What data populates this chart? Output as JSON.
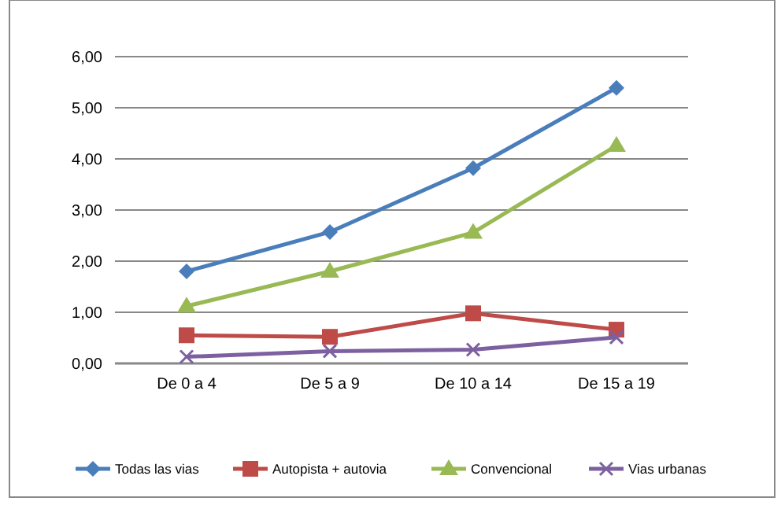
{
  "chart_data": {
    "type": "line",
    "categories": [
      "De 0 a 4",
      "De 5 a 9",
      "De 10 a 14",
      "De 15 a 19"
    ],
    "series": [
      {
        "name": "Todas las vias",
        "color": "#4a7ebb",
        "values": [
          1.8,
          2.57,
          3.82,
          5.39
        ],
        "marker": "diamond"
      },
      {
        "name": "Autopista + autovia",
        "color": "#be4b48",
        "values": [
          0.55,
          0.52,
          0.98,
          0.66
        ],
        "marker": "square"
      },
      {
        "name": "Convencional",
        "color": "#98b954",
        "values": [
          1.12,
          1.8,
          2.56,
          4.26
        ],
        "marker": "triangle"
      },
      {
        "name": "Vias urbanas",
        "color": "#7d60a0",
        "values": [
          0.13,
          0.24,
          0.27,
          0.51
        ],
        "marker": "cross"
      }
    ],
    "ylim": [
      0,
      6
    ],
    "yticks": [
      {
        "value": 0,
        "label": "0,00"
      },
      {
        "value": 1,
        "label": "1,00"
      },
      {
        "value": 2,
        "label": "2,00"
      },
      {
        "value": 3,
        "label": "3,00"
      },
      {
        "value": 4,
        "label": "4,00"
      },
      {
        "value": 5,
        "label": "5,00"
      },
      {
        "value": 6,
        "label": "6,00"
      }
    ],
    "grid": "y",
    "legend": "bottom"
  }
}
